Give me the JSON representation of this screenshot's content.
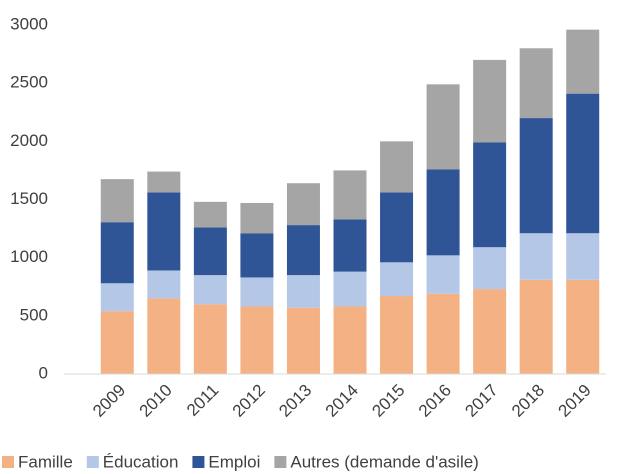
{
  "chart_data": {
    "type": "stacked_bar",
    "categories": [
      "2009",
      "2010",
      "2011",
      "2012",
      "2013",
      "2014",
      "2015",
      "2016",
      "2017",
      "2018",
      "2019"
    ],
    "series": [
      {
        "name": "Famille",
        "color": "#f4b183",
        "values": [
          540,
          650,
          600,
          580,
          570,
          580,
          670,
          690,
          730,
          810,
          810
        ]
      },
      {
        "name": "Éducation",
        "color": "#b4c7e7",
        "values": [
          240,
          240,
          250,
          250,
          280,
          300,
          290,
          330,
          360,
          400,
          400
        ]
      },
      {
        "name": "Emploi",
        "color": "#2f5597",
        "values": [
          525,
          670,
          410,
          380,
          430,
          450,
          600,
          740,
          900,
          990,
          1200
        ]
      },
      {
        "name": "Autres (demande d'asile)",
        "color": "#a5a5a5",
        "values": [
          370,
          180,
          220,
          260,
          360,
          420,
          440,
          730,
          710,
          600,
          550
        ]
      }
    ],
    "ylim": [
      0,
      3000
    ],
    "yticks": [
      0,
      500,
      1000,
      1500,
      2000,
      2500,
      3000
    ],
    "grid": false,
    "legend": "bottom"
  }
}
